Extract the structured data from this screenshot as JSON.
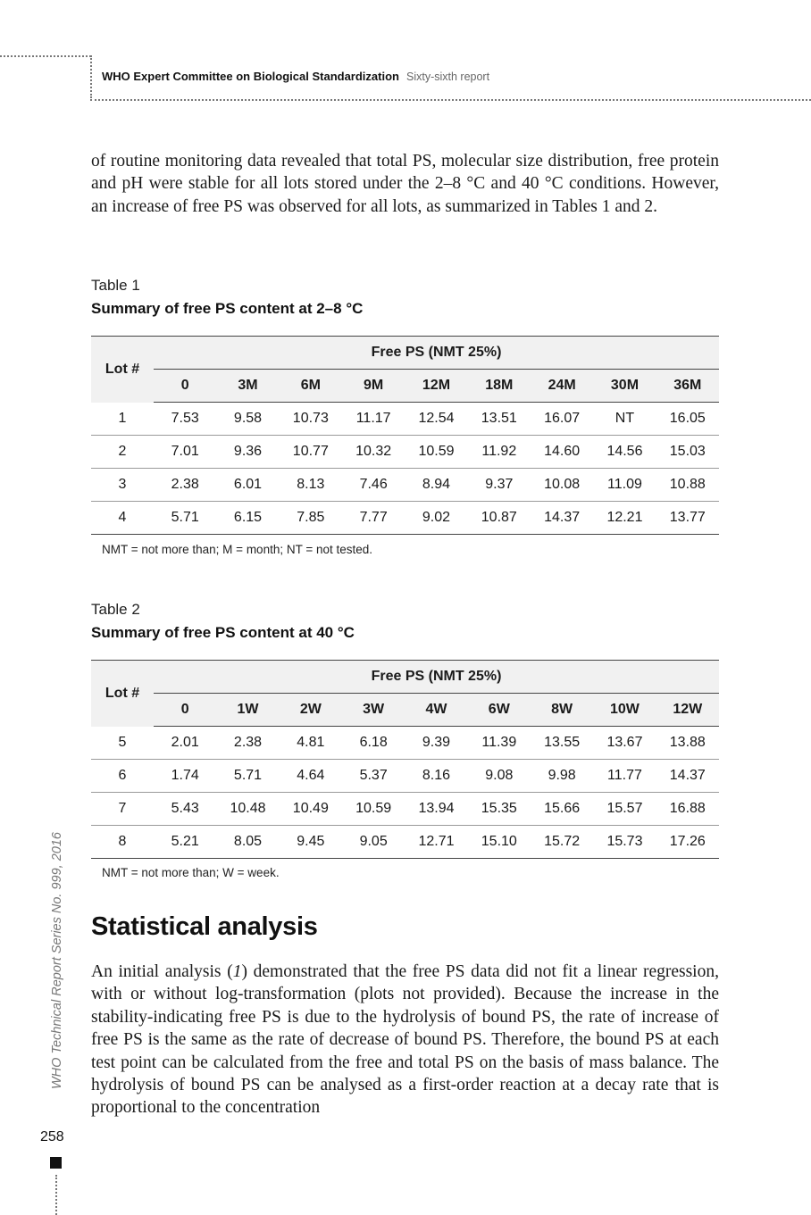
{
  "header": {
    "title": "WHO Expert Committee on Biological Standardization",
    "subtitle": "Sixty-sixth report"
  },
  "intro_paragraph": "of routine monitoring data revealed that total PS, molecular size distribution, free protein and pH were stable for all lots stored under the 2–8 °C and 40 °C conditions. However, an increase of free PS was observed for all lots, as summarized in Tables 1 and 2.",
  "table1": {
    "label": "Table 1",
    "title": "Summary of free PS content at 2–8 °C",
    "lot_header": "Lot #",
    "group_header": "Free PS (NMT 25%)",
    "columns": [
      "0",
      "3M",
      "6M",
      "9M",
      "12M",
      "18M",
      "24M",
      "30M",
      "36M"
    ],
    "rows": [
      {
        "lot": "1",
        "values": [
          "7.53",
          "9.58",
          "10.73",
          "11.17",
          "12.54",
          "13.51",
          "16.07",
          "NT",
          "16.05"
        ]
      },
      {
        "lot": "2",
        "values": [
          "7.01",
          "9.36",
          "10.77",
          "10.32",
          "10.59",
          "11.92",
          "14.60",
          "14.56",
          "15.03"
        ]
      },
      {
        "lot": "3",
        "values": [
          "2.38",
          "6.01",
          "8.13",
          "7.46",
          "8.94",
          "9.37",
          "10.08",
          "11.09",
          "10.88"
        ]
      },
      {
        "lot": "4",
        "values": [
          "5.71",
          "6.15",
          "7.85",
          "7.77",
          "9.02",
          "10.87",
          "14.37",
          "12.21",
          "13.77"
        ]
      }
    ],
    "note": "NMT = not more than; M = month; NT = not tested."
  },
  "table2": {
    "label": "Table 2",
    "title": "Summary of free PS content at 40 °C",
    "lot_header": "Lot #",
    "group_header": "Free PS (NMT 25%)",
    "columns": [
      "0",
      "1W",
      "2W",
      "3W",
      "4W",
      "6W",
      "8W",
      "10W",
      "12W"
    ],
    "rows": [
      {
        "lot": "5",
        "values": [
          "2.01",
          "2.38",
          "4.81",
          "6.18",
          "9.39",
          "11.39",
          "13.55",
          "13.67",
          "13.88"
        ]
      },
      {
        "lot": "6",
        "values": [
          "1.74",
          "5.71",
          "4.64",
          "5.37",
          "8.16",
          "9.08",
          "9.98",
          "11.77",
          "14.37"
        ]
      },
      {
        "lot": "7",
        "values": [
          "5.43",
          "10.48",
          "10.49",
          "10.59",
          "13.94",
          "15.35",
          "15.66",
          "15.57",
          "16.88"
        ]
      },
      {
        "lot": "8",
        "values": [
          "5.21",
          "8.05",
          "9.45",
          "9.05",
          "12.71",
          "15.10",
          "15.72",
          "15.73",
          "17.26"
        ]
      }
    ],
    "note": "NMT = not more than; W = week."
  },
  "section": {
    "heading": "Statistical analysis",
    "paragraph_before_ref": "An initial analysis (",
    "ref": "1",
    "paragraph_after_ref": ") demonstrated that the free PS data did not fit a linear regression, with or without log-transformation (plots not provided). Because the increase in the stability-indicating free PS is due to the hydrolysis of bound PS, the rate of increase of free PS is the same as the rate of decrease of bound PS. Therefore, the bound PS at each test point can be calculated from the free and total PS on the basis of mass balance. The hydrolysis of bound PS can be analysed as a first-order reaction at a decay rate that is proportional to the concentration"
  },
  "side_label": "WHO Technical Report Series No. 999, 2016",
  "page_number": "258"
}
